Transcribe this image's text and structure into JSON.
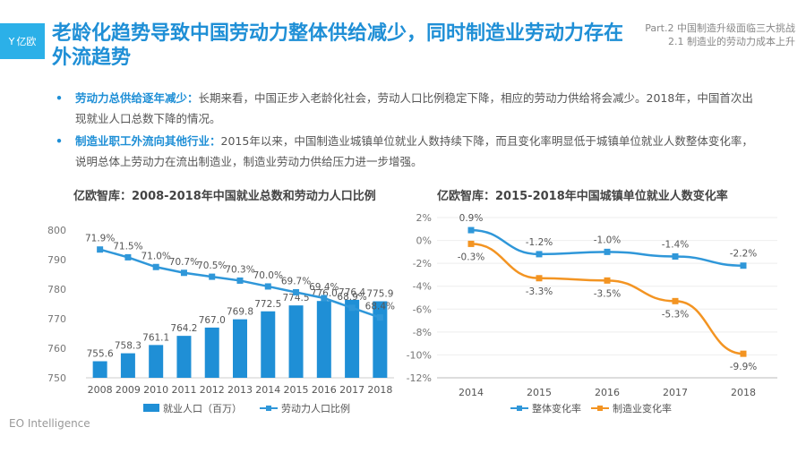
{
  "header": {
    "logo_text": "亿欧",
    "title": "老龄化趋势导致中国劳动力整体供给减少，同时制造业劳动力存在外流趋势",
    "part_line1": "Part.2 中国制造升级面临三大挑战",
    "part_line2": "2.1 制造业的劳动力成本上升"
  },
  "bullets": [
    {
      "marker": "•",
      "highlight": "劳动力总供给逐年减少：",
      "text": "长期来看，中国正步入老龄化社会，劳动人口比例稳定下降，相应的劳动力供给将会减少。2018年，中国首次出现就业人口总数下降的情况。"
    },
    {
      "marker": "•",
      "highlight": "制造业职工外流向其他行业：",
      "text": "2015年以来，中国制造业城镇单位就业人数持续下降，而且变化率明显低于城镇单位就业人数整体变化率，说明总体上劳动力在流出制造业，制造业劳动力供给压力进一步增强。"
    }
  ],
  "footer": "EO Intelligence",
  "colors": {
    "accent": "#1f8fd6",
    "orange": "#f39422",
    "bar": "#1f8fd6",
    "line": "#2f97d9"
  },
  "chart_data": [
    {
      "type": "bar",
      "title": "亿欧智库：2008-2018年中国就业总数和劳动力人口比例",
      "categories": [
        "2008",
        "2009",
        "2010",
        "2011",
        "2012",
        "2013",
        "2014",
        "2015",
        "2016",
        "2017",
        "2018"
      ],
      "series": [
        {
          "name": "就业人口（百万）",
          "type": "bar",
          "values": [
            755.6,
            758.3,
            761.1,
            764.2,
            767.0,
            769.8,
            772.5,
            774.5,
            776.0,
            776.4,
            775.9
          ],
          "labels": [
            "755.6",
            "758.3",
            "761.1",
            "764.2",
            "767.0",
            "769.8",
            "772.5",
            "774.5",
            "776.0",
            "776.4",
            "775.9"
          ]
        },
        {
          "name": "劳动力人口比例",
          "type": "line",
          "values": [
            71.9,
            71.5,
            71.0,
            70.7,
            70.5,
            70.3,
            70.0,
            69.7,
            69.4,
            68.9,
            68.4
          ],
          "labels": [
            "71.9%",
            "71.5%",
            "71.0%",
            "70.7%",
            "70.5%",
            "70.3%",
            "70.0%",
            "69.7%",
            "69.4%",
            "68.9%",
            "68.4%"
          ]
        }
      ],
      "yticks": [
        "800",
        "790",
        "780",
        "770",
        "760",
        "750"
      ],
      "ylim": [
        750,
        800
      ],
      "line_ylim": [
        65.3,
        72.9
      ],
      "legend_position": "bottom"
    },
    {
      "type": "line",
      "title": "亿欧智库：2015-2018年中国城镇单位就业人数变化率",
      "categories": [
        "2014",
        "2015",
        "2016",
        "2017",
        "2018"
      ],
      "series": [
        {
          "name": "整体变化率",
          "values": [
            0.9,
            -1.2,
            -1.0,
            -1.4,
            -2.2
          ],
          "labels": [
            "0.9%",
            "-1.2%",
            "-1.0%",
            "-1.4%",
            "-2.2%"
          ]
        },
        {
          "name": "制造业变化率",
          "values": [
            -0.3,
            -3.3,
            -3.5,
            -5.3,
            -9.9
          ],
          "labels": [
            "-0.3%",
            "-3.3%",
            "-3.5%",
            "-5.3%",
            "-9.9%"
          ]
        }
      ],
      "yticks": [
        "2%",
        "0%",
        "-2%",
        "-4%",
        "-6%",
        "-8%",
        "-10%",
        "-12%"
      ],
      "ylim": [
        -12,
        2
      ],
      "legend_position": "bottom"
    }
  ]
}
